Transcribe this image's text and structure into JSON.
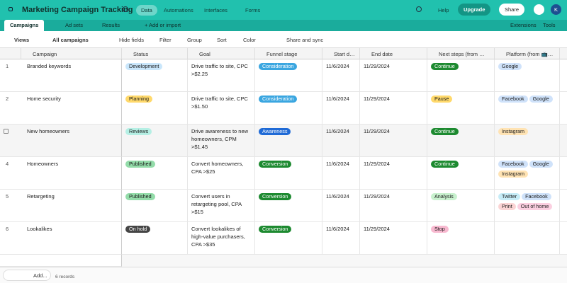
{
  "app_bar": {
    "title": "Marketing Campaign Tracking",
    "tabs": [
      "Data",
      "Automations",
      "Interfaces",
      "Forms"
    ],
    "help": "Help",
    "upgrade": "Upgrade",
    "share": "Share",
    "avatar": "K"
  },
  "table_tabs": {
    "tabs": [
      "Campaigns",
      "Ad sets",
      "Results"
    ],
    "add": "+ Add or import",
    "extensions": "Extensions",
    "tools": "Tools"
  },
  "toolbar": {
    "views": "Views",
    "view_name": "All campaigns",
    "actions": [
      "Hide fields",
      "Filter",
      "Group",
      "Sort",
      "Color",
      "Share and sync"
    ]
  },
  "table": {
    "columns": [
      "Campaign",
      "Status",
      "Goal",
      "Funnel stage",
      "Start d…",
      "End date",
      "Next steps (from …",
      "Platform (from 📺…"
    ],
    "rows": [
      {
        "number": 1,
        "campaign": "Branded keywords",
        "status": {
          "label": "Development",
          "color": "#c9e6fb"
        },
        "goal": "Drive traffic to site, CPC >$2.25",
        "funnel": {
          "label": "Consideration",
          "color": "#3aa6e0"
        },
        "start": "11/6/2024",
        "end": "11/29/2024",
        "next": {
          "label": "Continue",
          "color": "#1d8a30"
        },
        "platform": [
          {
            "label": "Google",
            "color": "#cfe2fa"
          }
        ]
      },
      {
        "number": 2,
        "campaign": "Home security",
        "status": {
          "label": "Planning",
          "color": "#ffd96b"
        },
        "goal": "Drive traffic to site, CPC >$1.50",
        "funnel": {
          "label": "Consideration",
          "color": "#3aa6e0"
        },
        "start": "11/6/2024",
        "end": "11/29/2024",
        "next": {
          "label": "Pause",
          "color": "#ffd96b"
        },
        "platform": [
          {
            "label": "Facebook",
            "color": "#cfe2fa"
          },
          {
            "label": "Google",
            "color": "#cfe2fa"
          }
        ]
      },
      {
        "campaign": "New homeowners",
        "status": {
          "label": "Reviews",
          "color": "#b5efe4"
        },
        "goal": "Drive awareness to new homeowners, CPM >$1.45",
        "funnel": {
          "label": "Awareness",
          "color": "#1f6ad6"
        },
        "start": "11/6/2024",
        "end": "11/29/2024",
        "next": {
          "label": "Continue",
          "color": "#1d8a30"
        },
        "platform": [
          {
            "label": "Instagram",
            "color": "#ffe3b3"
          }
        ]
      },
      {
        "number": 4,
        "campaign": "Homeowners",
        "status": {
          "label": "Published",
          "color": "#93dca9"
        },
        "goal": "Convert homeowners, CPA >$25",
        "funnel": {
          "label": "Conversion",
          "color": "#1d8a30"
        },
        "start": "11/6/2024",
        "end": "11/29/2024",
        "next": {
          "label": "Continue",
          "color": "#1d8a30"
        },
        "platform": [
          {
            "label": "Facebook",
            "color": "#cfe2fa"
          },
          {
            "label": "Google",
            "color": "#cfe2fa"
          },
          {
            "label": "Instagram",
            "color": "#ffe3b3"
          }
        ]
      },
      {
        "number": 5,
        "campaign": "Retargeting",
        "status": {
          "label": "Published",
          "color": "#93dca9"
        },
        "goal": "Convert users in retargeting pool, CPA >$15",
        "funnel": {
          "label": "Conversion",
          "color": "#1d8a30"
        },
        "start": "11/6/2024",
        "end": "11/29/2024",
        "next": {
          "label": "Analysis",
          "color": "#c8f1ce"
        },
        "platform": [
          {
            "label": "Twitter",
            "color": "#c6ecf7"
          },
          {
            "label": "Facebook",
            "color": "#cfe2fa"
          },
          {
            "label": "Print",
            "color": "#fbd4d4"
          },
          {
            "label": "Out of home",
            "color": "#fbcfe0"
          }
        ]
      },
      {
        "number": 6,
        "campaign": "Lookalikes",
        "status": {
          "label": "On hold",
          "color": "#454545"
        },
        "goal": "Convert lookalikes of high-value purchasers, CPA >$35",
        "funnel": {
          "label": "Conversion",
          "color": "#1d8a30"
        },
        "start": "11/6/2024",
        "end": "11/29/2024",
        "next": {
          "label": "Stop",
          "color": "#f8b9d0"
        },
        "platform": []
      }
    ]
  },
  "footer": {
    "add": "Add...",
    "records": "6 records"
  }
}
